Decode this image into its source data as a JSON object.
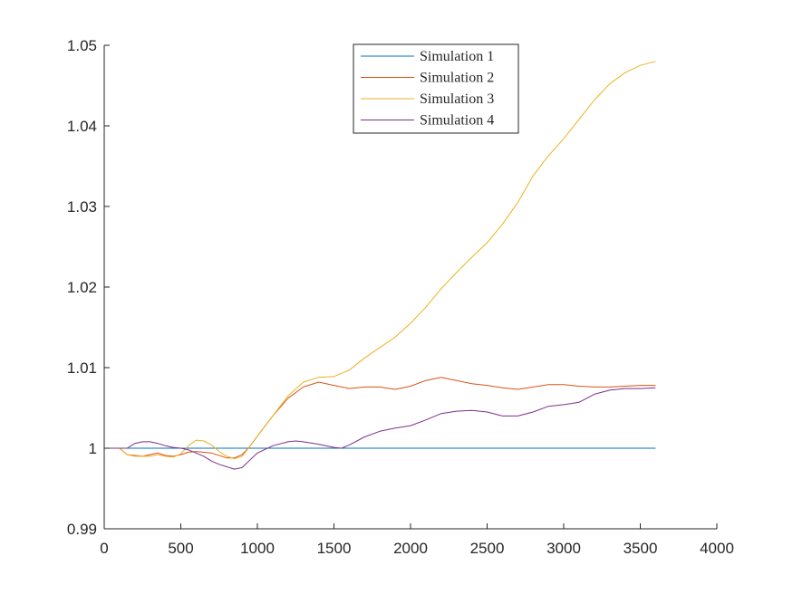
{
  "chart_data": {
    "type": "line",
    "title": "",
    "xlabel": "",
    "ylabel": "",
    "xlim": [
      0,
      4000
    ],
    "ylim": [
      0.99,
      1.05
    ],
    "xticks": [
      0,
      500,
      1000,
      1500,
      2000,
      2500,
      3000,
      3500,
      4000
    ],
    "xtick_labels": [
      "0",
      "500",
      "1000",
      "1500",
      "2000",
      "2500",
      "3000",
      "3500",
      "4000"
    ],
    "yticks": [
      0.99,
      1.0,
      1.01,
      1.02,
      1.03,
      1.04,
      1.05
    ],
    "ytick_labels": [
      "0.99",
      "1",
      "1.01",
      "1.02",
      "1.03",
      "1.04",
      "1.05"
    ],
    "grid": false,
    "legend_position": "top-center",
    "series": [
      {
        "name": "Simulation 1",
        "color": "#0072BD",
        "x": [
          0,
          3600
        ],
        "y": [
          1.0,
          1.0
        ]
      },
      {
        "name": "Simulation 2",
        "color": "#D95319",
        "x": [
          0,
          100,
          150,
          250,
          350,
          400,
          450,
          500,
          550,
          600,
          700,
          800,
          850,
          900,
          950,
          1000,
          1100,
          1200,
          1300,
          1400,
          1500,
          1600,
          1700,
          1800,
          1900,
          2000,
          2100,
          2200,
          2300,
          2400,
          2500,
          2600,
          2700,
          2800,
          2900,
          3000,
          3100,
          3200,
          3300,
          3400,
          3500,
          3600
        ],
        "y": [
          1.0,
          1.0,
          0.9992,
          0.999,
          0.9994,
          0.9991,
          0.999,
          0.9992,
          0.9995,
          0.9996,
          0.9994,
          0.9988,
          0.9988,
          0.9992,
          1.0002,
          1.0015,
          1.004,
          1.0062,
          1.0076,
          1.0082,
          1.0078,
          1.0074,
          1.0076,
          1.0076,
          1.0073,
          1.0077,
          1.0084,
          1.0088,
          1.0084,
          1.008,
          1.0078,
          1.0075,
          1.0073,
          1.0076,
          1.0079,
          1.0079,
          1.0077,
          1.0076,
          1.0076,
          1.0077,
          1.0078,
          1.0078
        ]
      },
      {
        "name": "Simulation 3",
        "color": "#EDB120",
        "x": [
          0,
          100,
          150,
          200,
          300,
          350,
          400,
          450,
          500,
          550,
          600,
          650,
          700,
          750,
          800,
          850,
          900,
          950,
          1000,
          1100,
          1200,
          1300,
          1400,
          1500,
          1600,
          1700,
          1800,
          1900,
          2000,
          2100,
          2200,
          2300,
          2400,
          2500,
          2600,
          2700,
          2800,
          2900,
          3000,
          3100,
          3200,
          3300,
          3400,
          3500,
          3600
        ],
        "y": [
          1.0,
          1.0,
          0.9992,
          0.999,
          0.999,
          0.9992,
          0.999,
          0.9989,
          0.9993,
          1.0003,
          1.001,
          1.0009,
          1.0004,
          0.9996,
          0.999,
          0.9987,
          0.999,
          1.0002,
          1.0015,
          1.004,
          1.0065,
          1.0082,
          1.0088,
          1.0089,
          1.0097,
          1.0112,
          1.0125,
          1.0138,
          1.0155,
          1.0175,
          1.0198,
          1.0218,
          1.0237,
          1.0255,
          1.0278,
          1.0305,
          1.0338,
          1.0363,
          1.0384,
          1.0408,
          1.0432,
          1.0452,
          1.0466,
          1.0475,
          1.048
        ]
      },
      {
        "name": "Simulation 4",
        "color": "#7E2F8E",
        "x": [
          0,
          100,
          150,
          200,
          250,
          300,
          350,
          400,
          450,
          500,
          550,
          600,
          650,
          700,
          750,
          800,
          850,
          900,
          950,
          1000,
          1100,
          1200,
          1250,
          1300,
          1400,
          1500,
          1550,
          1600,
          1700,
          1800,
          1900,
          2000,
          2100,
          2200,
          2300,
          2400,
          2500,
          2600,
          2700,
          2800,
          2900,
          3000,
          3100,
          3200,
          3300,
          3400,
          3500,
          3600
        ],
        "y": [
          1.0,
          1.0,
          1.0,
          1.0006,
          1.0008,
          1.0008,
          1.0006,
          1.0003,
          1.0001,
          1.0,
          0.9998,
          0.9994,
          0.999,
          0.9984,
          0.998,
          0.9977,
          0.9974,
          0.9976,
          0.9985,
          0.9994,
          1.0003,
          1.0008,
          1.0009,
          1.0008,
          1.0005,
          1.0001,
          1.0,
          1.0004,
          1.0014,
          1.0021,
          1.0025,
          1.0028,
          1.0035,
          1.0043,
          1.0046,
          1.0047,
          1.0045,
          1.004,
          1.004,
          1.0045,
          1.0052,
          1.0054,
          1.0057,
          1.0067,
          1.0072,
          1.0074,
          1.0074,
          1.0075
        ]
      }
    ]
  }
}
